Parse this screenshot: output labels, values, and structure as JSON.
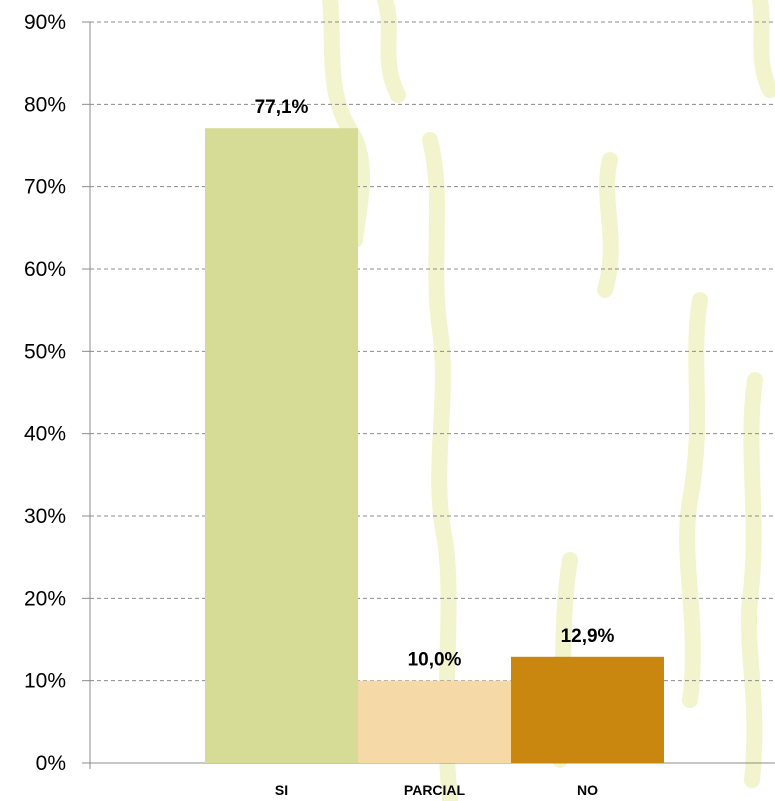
{
  "chart_data": {
    "type": "bar",
    "categories": [
      "SI",
      "PARCIAL",
      "NO"
    ],
    "values": [
      77.1,
      10.0,
      12.9
    ],
    "data_labels": [
      "77,1%",
      "10,0%",
      "12,9%"
    ],
    "ylim": [
      0,
      90
    ],
    "y_ticks": [
      0,
      10,
      20,
      30,
      40,
      50,
      60,
      70,
      80,
      90
    ],
    "y_tick_labels": [
      "0%",
      "10%",
      "20%",
      "30%",
      "40%",
      "50%",
      "60%",
      "70%",
      "80%",
      "90%"
    ],
    "grid": true,
    "legend": "none",
    "title": "",
    "xlabel": "",
    "ylabel": "",
    "colors": [
      "#d6dc96",
      "#f5d9a6",
      "#c9870f"
    ],
    "watermark_color": "#f1f3c8"
  }
}
